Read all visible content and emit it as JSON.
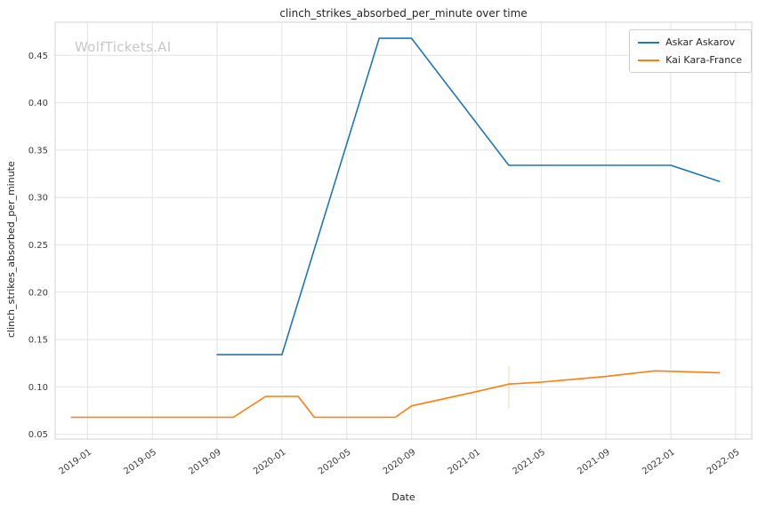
{
  "watermark": "WolfTickets.AI",
  "chart_data": {
    "type": "line",
    "title": "clinch_strikes_absorbed_per_minute over time",
    "xlabel": "Date",
    "ylabel": "clinch_strikes_absorbed_per_minute",
    "x_ticks": [
      "2019-01",
      "2019-05",
      "2019-09",
      "2020-01",
      "2020-05",
      "2020-09",
      "2021-01",
      "2021-05",
      "2021-09",
      "2022-01",
      "2022-05"
    ],
    "y_ticks": [
      0.05,
      0.1,
      0.15,
      0.2,
      0.25,
      0.3,
      0.35,
      0.4,
      0.45
    ],
    "xlim": [
      "2018-11",
      "2022-06"
    ],
    "ylim": [
      0.045,
      0.485
    ],
    "grid": true,
    "legend_position": "upper right",
    "series": [
      {
        "name": "Askar Askarov",
        "color": "#1f77b4",
        "points": [
          [
            "2019-09",
            0.134
          ],
          [
            "2020-01",
            0.134
          ],
          [
            "2020-07",
            0.468
          ],
          [
            "2020-09",
            0.468
          ],
          [
            "2021-03",
            0.334
          ],
          [
            "2022-01",
            0.334
          ],
          [
            "2022-04",
            0.317
          ]
        ]
      },
      {
        "name": "Kai Kara-France",
        "color": "#ff7f0e",
        "points": [
          [
            "2018-12",
            0.068
          ],
          [
            "2019-10",
            0.068
          ],
          [
            "2019-12",
            0.09
          ],
          [
            "2020-02",
            0.09
          ],
          [
            "2020-03",
            0.068
          ],
          [
            "2020-08",
            0.068
          ],
          [
            "2020-09",
            0.08
          ],
          [
            "2021-01",
            0.095
          ],
          [
            "2021-03",
            0.103
          ],
          [
            "2021-05",
            0.105
          ],
          [
            "2021-09",
            0.111
          ],
          [
            "2021-12",
            0.117
          ],
          [
            "2022-04",
            0.115
          ]
        ]
      }
    ],
    "annotation": {
      "type": "vline",
      "x": "2021-03",
      "y1": 0.077,
      "y2": 0.122,
      "color": "#ffc98f"
    }
  }
}
